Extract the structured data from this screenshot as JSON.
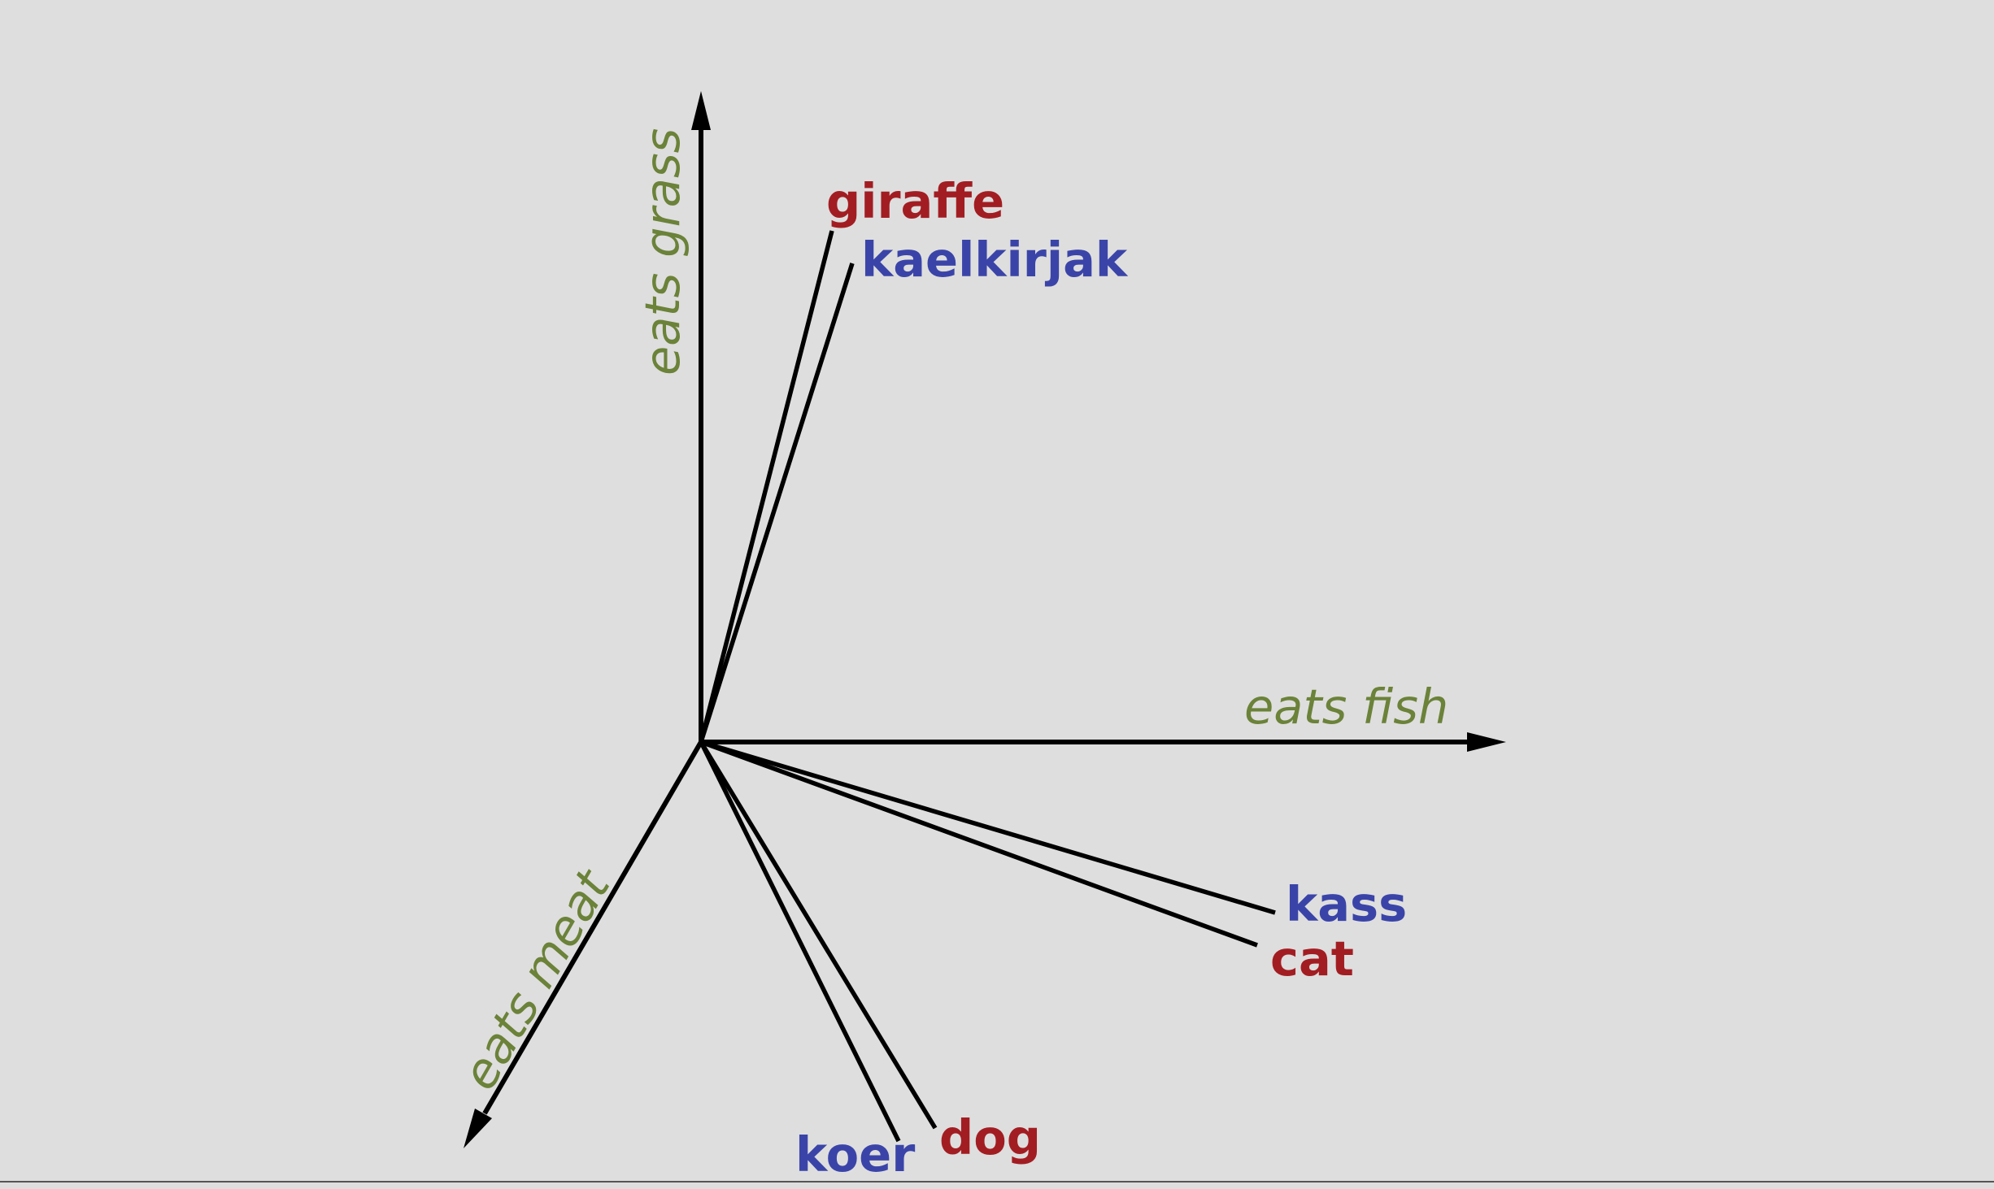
{
  "diagram": {
    "axes": [
      {
        "id": "eats-grass",
        "label": "eats grass"
      },
      {
        "id": "eats-fish",
        "label": "eats fish"
      },
      {
        "id": "eats-meat",
        "label": "eats meat"
      }
    ],
    "words": [
      {
        "id": "giraffe",
        "text": "giraffe",
        "language": "en",
        "color": "#a21d22"
      },
      {
        "id": "kaelkirjak",
        "text": "kaelkirjak",
        "language": "et",
        "color": "#3a44a8"
      },
      {
        "id": "kass",
        "text": "kass",
        "language": "et",
        "color": "#3a44a8"
      },
      {
        "id": "cat",
        "text": "cat",
        "language": "en",
        "color": "#a21d22"
      },
      {
        "id": "dog",
        "text": "dog",
        "language": "en",
        "color": "#a21d22"
      },
      {
        "id": "koer",
        "text": "koer",
        "language": "et",
        "color": "#3a44a8"
      }
    ],
    "colors": {
      "background": "#dedede",
      "axis_label": "#6b8239",
      "english_word": "#a21d22",
      "estonian_word": "#3a44a8",
      "lines": "#000000"
    }
  }
}
